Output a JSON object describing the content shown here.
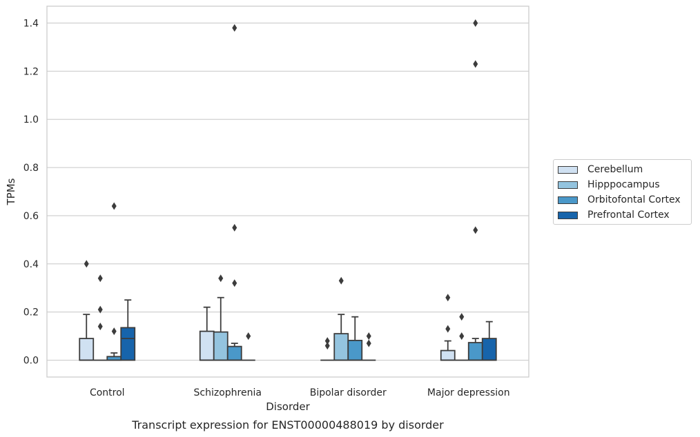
{
  "chart_data": {
    "type": "box",
    "title": "Transcript expression for ENST00000488019 by disorder",
    "xlabel": "Disorder",
    "ylabel": "TPMs",
    "ylim": [
      -0.07,
      1.47
    ],
    "yticks": [
      "0.0",
      "0.2",
      "0.4",
      "0.6",
      "0.8",
      "1.0",
      "1.2",
      "1.4"
    ],
    "categories": [
      "Control",
      "Schizophrenia",
      "Bipolar disorder",
      "Major depression"
    ],
    "grid": "horizontal",
    "legend_position": "right",
    "series": [
      {
        "name": "Cerebellum",
        "color": "#d0e1f2",
        "boxes": [
          {
            "q1": 0.0,
            "median": 0.0,
            "q3": 0.09,
            "whisker_low": 0.0,
            "whisker_high": 0.19,
            "outliers": [
              0.4
            ]
          },
          {
            "q1": 0.0,
            "median": 0.0,
            "q3": 0.12,
            "whisker_low": 0.0,
            "whisker_high": 0.22,
            "outliers": []
          },
          {
            "q1": 0.0,
            "median": 0.0,
            "q3": 0.0,
            "whisker_low": 0.0,
            "whisker_high": 0.0,
            "outliers": [
              0.06,
              0.08
            ]
          },
          {
            "q1": 0.0,
            "median": 0.0,
            "q3": 0.04,
            "whisker_low": 0.0,
            "whisker_high": 0.08,
            "outliers": [
              0.13,
              0.26
            ]
          }
        ]
      },
      {
        "name": "Hipppocampus",
        "color": "#94c4df",
        "boxes": [
          {
            "q1": 0.0,
            "median": 0.0,
            "q3": 0.0,
            "whisker_low": 0.0,
            "whisker_high": 0.0,
            "outliers": [
              0.14,
              0.21,
              0.34
            ]
          },
          {
            "q1": 0.0,
            "median": 0.0,
            "q3": 0.117,
            "whisker_low": 0.0,
            "whisker_high": 0.26,
            "outliers": [
              0.34
            ]
          },
          {
            "q1": 0.0,
            "median": 0.0,
            "q3": 0.11,
            "whisker_low": 0.0,
            "whisker_high": 0.19,
            "outliers": [
              0.33
            ]
          },
          {
            "q1": 0.0,
            "median": 0.0,
            "q3": 0.0,
            "whisker_low": 0.0,
            "whisker_high": 0.0,
            "outliers": [
              0.1,
              0.18
            ]
          }
        ]
      },
      {
        "name": "Orbitofontal Cortex",
        "color": "#4a98c9",
        "boxes": [
          {
            "q1": 0.0,
            "median": 0.0,
            "q3": 0.015,
            "whisker_low": 0.0,
            "whisker_high": 0.03,
            "outliers": [
              0.12,
              0.64
            ]
          },
          {
            "q1": 0.0,
            "median": 0.0,
            "q3": 0.057,
            "whisker_low": 0.0,
            "whisker_high": 0.07,
            "outliers": [
              0.32,
              0.55,
              1.38
            ]
          },
          {
            "q1": 0.0,
            "median": 0.0,
            "q3": 0.082,
            "whisker_low": 0.0,
            "whisker_high": 0.18,
            "outliers": []
          },
          {
            "q1": 0.0,
            "median": 0.0,
            "q3": 0.073,
            "whisker_low": 0.0,
            "whisker_high": 0.09,
            "outliers": [
              0.54,
              1.23,
              1.4
            ]
          }
        ]
      },
      {
        "name": "Prefrontal Cortex",
        "color": "#1764ab",
        "boxes": [
          {
            "q1": 0.0,
            "median": 0.09,
            "q3": 0.135,
            "whisker_low": 0.0,
            "whisker_high": 0.25,
            "outliers": []
          },
          {
            "q1": 0.0,
            "median": 0.0,
            "q3": 0.0,
            "whisker_low": 0.0,
            "whisker_high": 0.0,
            "outliers": [
              0.1
            ]
          },
          {
            "q1": 0.0,
            "median": 0.0,
            "q3": 0.0,
            "whisker_low": 0.0,
            "whisker_high": 0.0,
            "outliers": [
              0.07,
              0.1
            ]
          },
          {
            "q1": 0.0,
            "median": 0.0,
            "q3": 0.09,
            "whisker_low": 0.0,
            "whisker_high": 0.16,
            "outliers": []
          }
        ]
      }
    ]
  }
}
